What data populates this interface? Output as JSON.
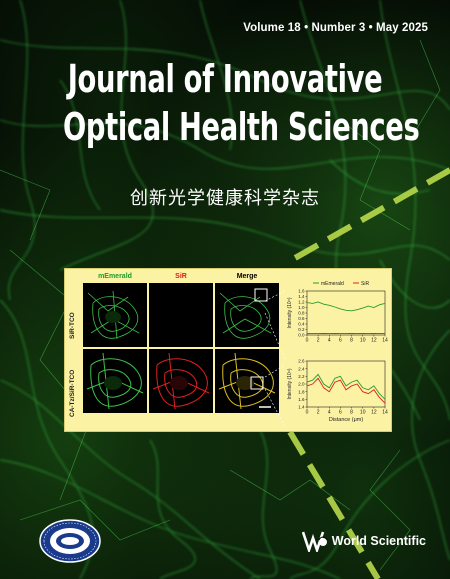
{
  "cover": {
    "issue_line": "Volume 18 • Number 3 • May 2025",
    "title_line1": "Journal of Innovative",
    "title_line2": "Optical Health Sciences",
    "title_chinese": "创新光学健康科学杂志",
    "publisher": "World Scientific",
    "colors": {
      "background": "#050805",
      "fiber_green": "#3cc24a",
      "dashed_line": "#b8d94a",
      "figure_bg": "#fbf2a4"
    }
  },
  "figure": {
    "column_headers": [
      {
        "label": "mEmerald",
        "color": "#1a9c2a"
      },
      {
        "label": "SiR",
        "color": "#e01818"
      },
      {
        "label": "Merge",
        "color": "#000000"
      }
    ],
    "row_labels": [
      "SiR-TCO",
      "CA-Tz/SiR-TCO"
    ],
    "chart_data": [
      {
        "type": "line",
        "legend": [
          "mEmerald",
          "SiR"
        ],
        "ylabel": "Intensity (10⁴)",
        "xlabel": "",
        "x_ticks": [
          "0",
          "2",
          "4",
          "6",
          "8",
          "10",
          "12",
          "14"
        ],
        "y_ticks": [
          "0.0",
          "0.2",
          "0.4",
          "0.6",
          "0.8",
          "1.0",
          "1.2",
          "1.4",
          "1.6"
        ],
        "ylim": [
          0,
          1.6
        ],
        "xlim": [
          0,
          14
        ],
        "series": [
          {
            "name": "mEmerald",
            "color": "#2a9c2a",
            "x": [
              0,
              1,
              2,
              3,
              4,
              5,
              6,
              7,
              8,
              9,
              10,
              11,
              12,
              13,
              14
            ],
            "values": [
              1.18,
              1.15,
              1.2,
              1.12,
              1.08,
              1.02,
              0.95,
              0.9,
              0.88,
              0.92,
              0.98,
              1.05,
              1.0,
              1.1,
              1.15
            ]
          },
          {
            "name": "SiR",
            "color": "#e02020",
            "x": [
              0,
              1,
              2,
              3,
              4,
              5,
              6,
              7,
              8,
              9,
              10,
              11,
              12,
              13,
              14
            ],
            "values": [
              0.06,
              0.06,
              0.05,
              0.06,
              0.05,
              0.06,
              0.05,
              0.05,
              0.06,
              0.05,
              0.06,
              0.05,
              0.06,
              0.05,
              0.06
            ]
          }
        ]
      },
      {
        "type": "line",
        "ylabel": "Intensity (10⁴)",
        "xlabel": "Distance (μm)",
        "x_ticks": [
          "0",
          "2",
          "4",
          "6",
          "8",
          "10",
          "12",
          "14"
        ],
        "y_ticks": [
          "1.4",
          "1.6",
          "1.8",
          "2.0",
          "2.2",
          "2.4",
          "2.6"
        ],
        "ylim": [
          1.4,
          2.6
        ],
        "xlim": [
          0,
          14
        ],
        "series": [
          {
            "name": "mEmerald",
            "color": "#2a9c2a",
            "x": [
              0,
              1,
              2,
              3,
              4,
              5,
              6,
              7,
              8,
              9,
              10,
              11,
              12,
              13,
              14
            ],
            "values": [
              2.05,
              2.1,
              2.25,
              2.0,
              1.9,
              2.15,
              2.2,
              1.95,
              2.05,
              2.1,
              1.9,
              1.85,
              1.95,
              1.75,
              1.6
            ]
          },
          {
            "name": "SiR",
            "color": "#e02020",
            "x": [
              0,
              1,
              2,
              3,
              4,
              5,
              6,
              7,
              8,
              9,
              10,
              11,
              12,
              13,
              14
            ],
            "values": [
              1.95,
              2.0,
              2.15,
              1.9,
              1.8,
              2.05,
              2.1,
              1.85,
              1.95,
              2.0,
              1.8,
              1.75,
              1.85,
              1.65,
              1.5
            ]
          }
        ]
      }
    ]
  },
  "logo_left_name": "university-seal-logo",
  "publisher_icon": "world-scientific-logo"
}
